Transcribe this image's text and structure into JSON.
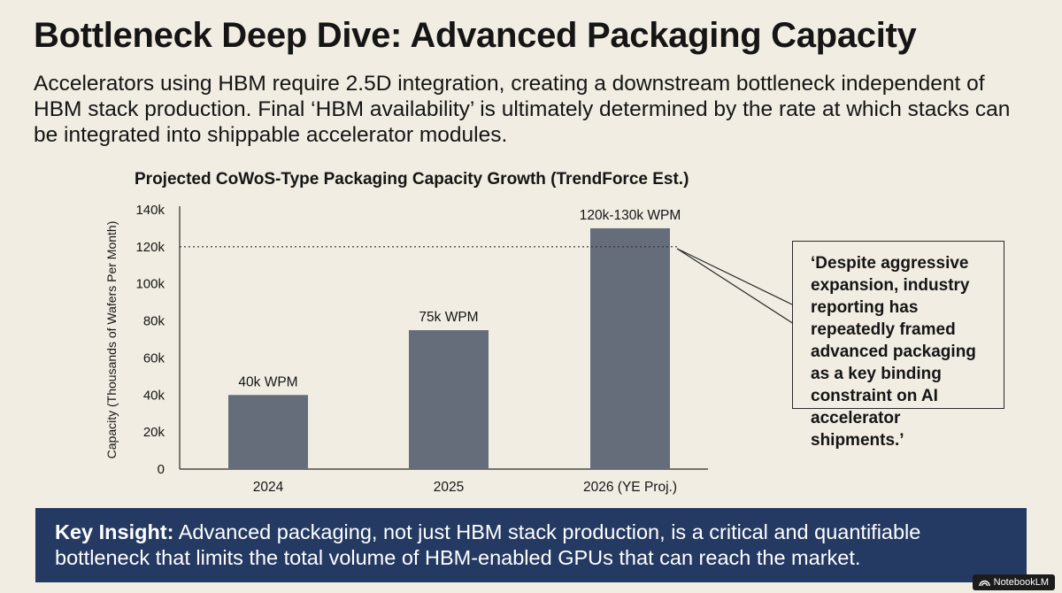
{
  "header": {
    "title": "Bottleneck Deep Dive: Advanced Packaging Capacity",
    "subtitle": "Accelerators using HBM require 2.5D integration, creating a downstream bottleneck independent of HBM stack production. Final ‘HBM availability’ is ultimately determined by the rate at which stacks can be integrated into shippable accelerator modules."
  },
  "chart_data": {
    "type": "bar",
    "title": "Projected CoWoS-Type Packaging Capacity Growth (TrendForce Est.)",
    "xlabel": "",
    "ylabel": "Capacity (Thousands of Wafers Per Month)",
    "categories": [
      "2024",
      "2025",
      "2026 (YE Proj.)"
    ],
    "values": [
      40,
      75,
      130
    ],
    "data_labels": [
      "40k WPM",
      "75k WPM",
      "120k-130k WPM"
    ],
    "ylim": [
      0,
      140
    ],
    "yticks": [
      0,
      20,
      40,
      60,
      80,
      100,
      120,
      140
    ],
    "ytick_labels": [
      "0",
      "20k",
      "40k",
      "60k",
      "80k",
      "100k",
      "120k",
      "140k"
    ],
    "reference_line": {
      "value": 120,
      "style": "dotted"
    },
    "bar_color": "#666d7a",
    "grid": false
  },
  "callout": {
    "quote": "‘Despite aggressive expansion, industry reporting has repeatedly framed advanced packaging as a key binding constraint on AI accelerator shipments.’"
  },
  "insight": {
    "label": "Key Insight:",
    "text": " Advanced packaging, not just HBM stack production, is a critical and quantifiable bottleneck that limits the total volume of HBM-enabled GPUs that can reach the market."
  },
  "branding": {
    "label": "NotebookLM"
  },
  "colors": {
    "background": "#f1ede2",
    "bar": "#666d7a",
    "banner": "#243a63",
    "text": "#151515"
  }
}
